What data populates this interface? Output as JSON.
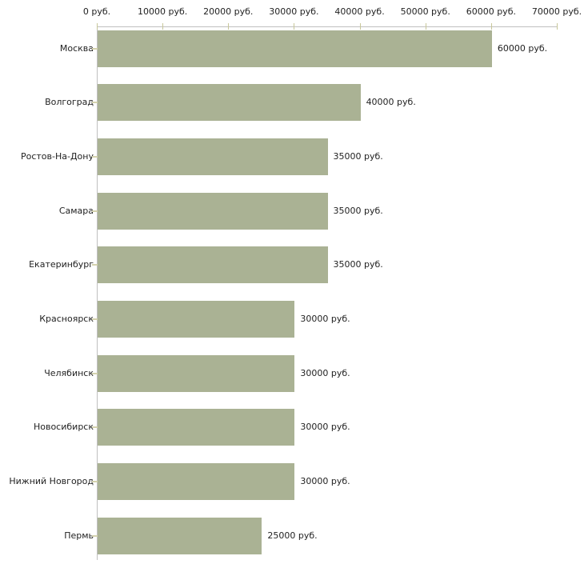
{
  "chart_data": {
    "type": "bar",
    "orientation": "horizontal",
    "categories": [
      "Москва",
      "Волгоград",
      "Ростов-На-Дону",
      "Самара",
      "Екатеринбург",
      "Красноярск",
      "Челябинск",
      "Новосибирск",
      "Нижний Новгород",
      "Пермь"
    ],
    "values": [
      60000,
      40000,
      35000,
      35000,
      35000,
      30000,
      30000,
      30000,
      30000,
      25000
    ],
    "value_labels": [
      "60000 руб.",
      "40000 руб.",
      "35000 руб.",
      "35000 руб.",
      "35000 руб.",
      "30000 руб.",
      "30000 руб.",
      "30000 руб.",
      "30000 руб.",
      "25000 руб."
    ],
    "xlim": [
      0,
      70000
    ],
    "x_tick_values": [
      0,
      10000,
      20000,
      30000,
      40000,
      50000,
      60000,
      70000
    ],
    "x_tick_labels": [
      "0 руб.",
      "10000 руб.",
      "20000 руб.",
      "30000 руб.",
      "40000 руб.",
      "50000 руб.",
      "60000 руб.",
      "70000 руб."
    ],
    "grid": false,
    "legend": null,
    "axis_position": "top",
    "colors": {
      "bar": "#aab294",
      "axis_line": "#c0c0c0",
      "tick": "#c8c79a",
      "y_tick": "#d4d2ae",
      "text": "#222222",
      "background": "#ffffff"
    }
  }
}
